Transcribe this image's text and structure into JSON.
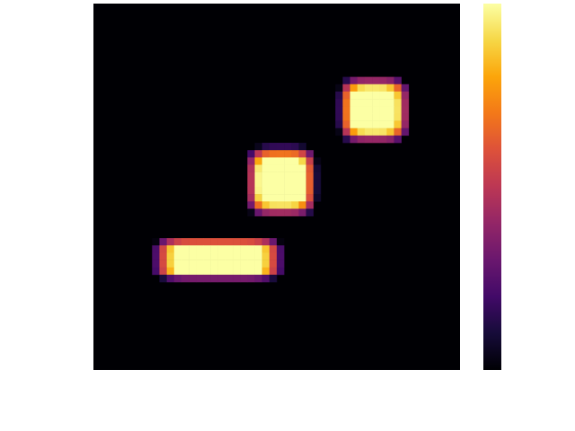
{
  "chart_data": {
    "type": "heatmap",
    "colormap": "inferno",
    "grid": false,
    "axes_visible": false,
    "colorbar": {
      "placement": "right",
      "tick_labels_visible": false
    },
    "value_range": [
      0,
      1
    ],
    "background_value": 0,
    "shapes": [
      {
        "kind": "rounded-blob",
        "label": "upper-right-blob",
        "peak_value": 1,
        "center": [
          0.765,
          0.29
        ],
        "radius": [
          0.1,
          0.093
        ]
      },
      {
        "kind": "rounded-blob",
        "label": "middle-blob",
        "peak_value": 1,
        "center": [
          0.513,
          0.485
        ],
        "radius": [
          0.1,
          0.1
        ]
      },
      {
        "kind": "rounded-bar",
        "label": "lower-left-bar",
        "peak_value": 1,
        "x_range": [
          0.16,
          0.52
        ],
        "y_range": [
          0.64,
          0.755
        ]
      }
    ]
  }
}
